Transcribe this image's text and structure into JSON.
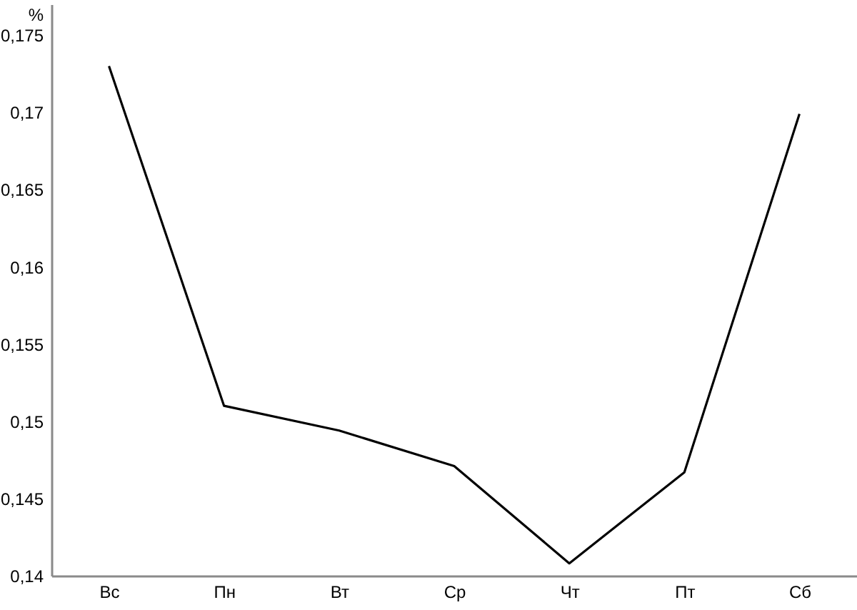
{
  "chart_data": {
    "type": "line",
    "ylabel": "%",
    "categories": [
      "Вс",
      "Пн",
      "Вт",
      "Ср",
      "Чт",
      "Пт",
      "Сб"
    ],
    "series": [
      {
        "color": "#000000",
        "values": [
          0.173,
          0.151,
          0.1494,
          0.1471,
          0.1408,
          0.1467,
          0.1699
        ]
      }
    ],
    "ylim": [
      0.14,
      0.177
    ],
    "yticks": [
      {
        "value": 0.14,
        "label": "0,14"
      },
      {
        "value": 0.145,
        "label": "0,145"
      },
      {
        "value": 0.15,
        "label": "0,15"
      },
      {
        "value": 0.155,
        "label": "0,155"
      },
      {
        "value": 0.16,
        "label": "0,16"
      },
      {
        "value": 0.165,
        "label": "0,165"
      },
      {
        "value": 0.17,
        "label": "0,17"
      },
      {
        "value": 0.175,
        "label": "0,175"
      }
    ],
    "line_style": "solid"
  }
}
